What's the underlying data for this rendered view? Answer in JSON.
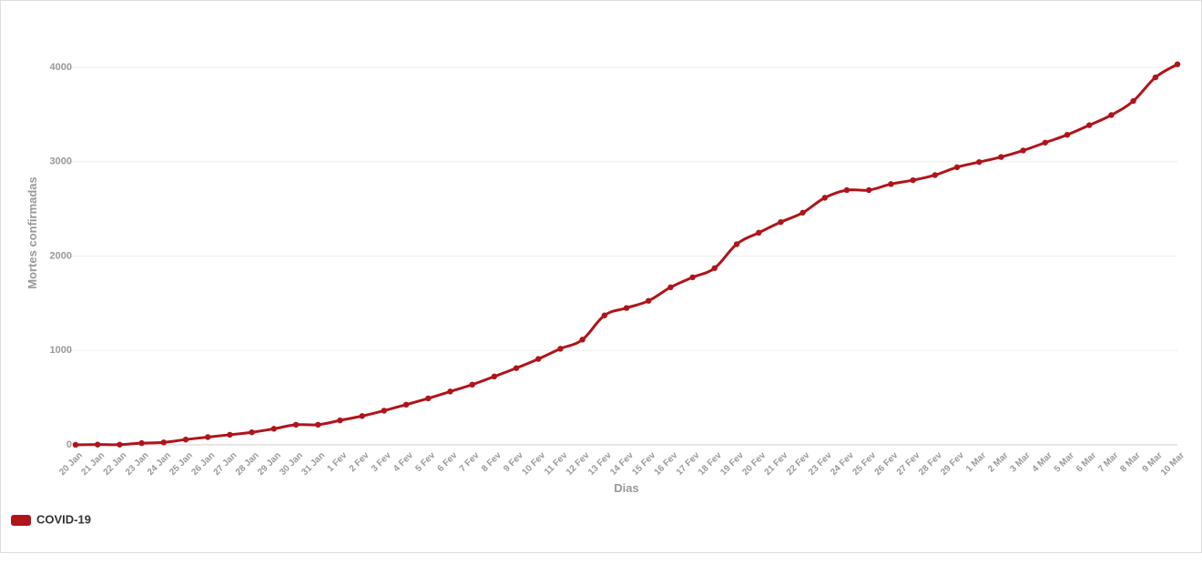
{
  "chart_data": {
    "type": "line",
    "x_label": "Dias",
    "y_label": "Mortes confirmadas",
    "categories": [
      "20 Jan",
      "21 Jan",
      "22 Jan",
      "23 Jan",
      "24 Jan",
      "25 Jan",
      "26 Jan",
      "27 Jan",
      "28 Jan",
      "29 Jan",
      "30 Jan",
      "31 Jan",
      "1 Fev",
      "2 Fev",
      "3 Fev",
      "4 Fev",
      "5 Fev",
      "6 Fev",
      "7 Fev",
      "8 Fev",
      "9 Fev",
      "10 Fev",
      "11 Fev",
      "12 Fev",
      "13 Fev",
      "14 Fev",
      "15 Fev",
      "16 Fev",
      "17 Fev",
      "18 Fev",
      "19 Fev",
      "20 Fev",
      "21 Fev",
      "22 Fev",
      "23 Fev",
      "24 Fev",
      "25 Fev",
      "26 Fev",
      "27 Fev",
      "28 Fev",
      "29 Fev",
      "1 Mar",
      "2 Mar",
      "3 Mar",
      "4 Mar",
      "5 Mar",
      "6 Mar",
      "7 Mar",
      "8 Mar",
      "9 Mar",
      "10 Mar"
    ],
    "series": [
      {
        "name": "COVID-19",
        "color": "#b0141b",
        "values": [
          0,
          3,
          2,
          18,
          26,
          56,
          82,
          107,
          133,
          170,
          213,
          213,
          259,
          305,
          362,
          426,
          492,
          565,
          638,
          724,
          813,
          910,
          1018,
          1115,
          1371,
          1450,
          1526,
          1669,
          1775,
          1873,
          2126,
          2247,
          2360,
          2460,
          2618,
          2699,
          2699,
          2763,
          2804,
          2858,
          2941,
          2996,
          3050,
          3119,
          3202,
          3285,
          3387,
          3494,
          3643,
          3893,
          4032
        ]
      }
    ],
    "ylim": [
      0,
      4400
    ],
    "yticks": [
      0,
      1000,
      2000,
      3000,
      4000
    ],
    "grid": true,
    "legend": "bottom-left"
  }
}
